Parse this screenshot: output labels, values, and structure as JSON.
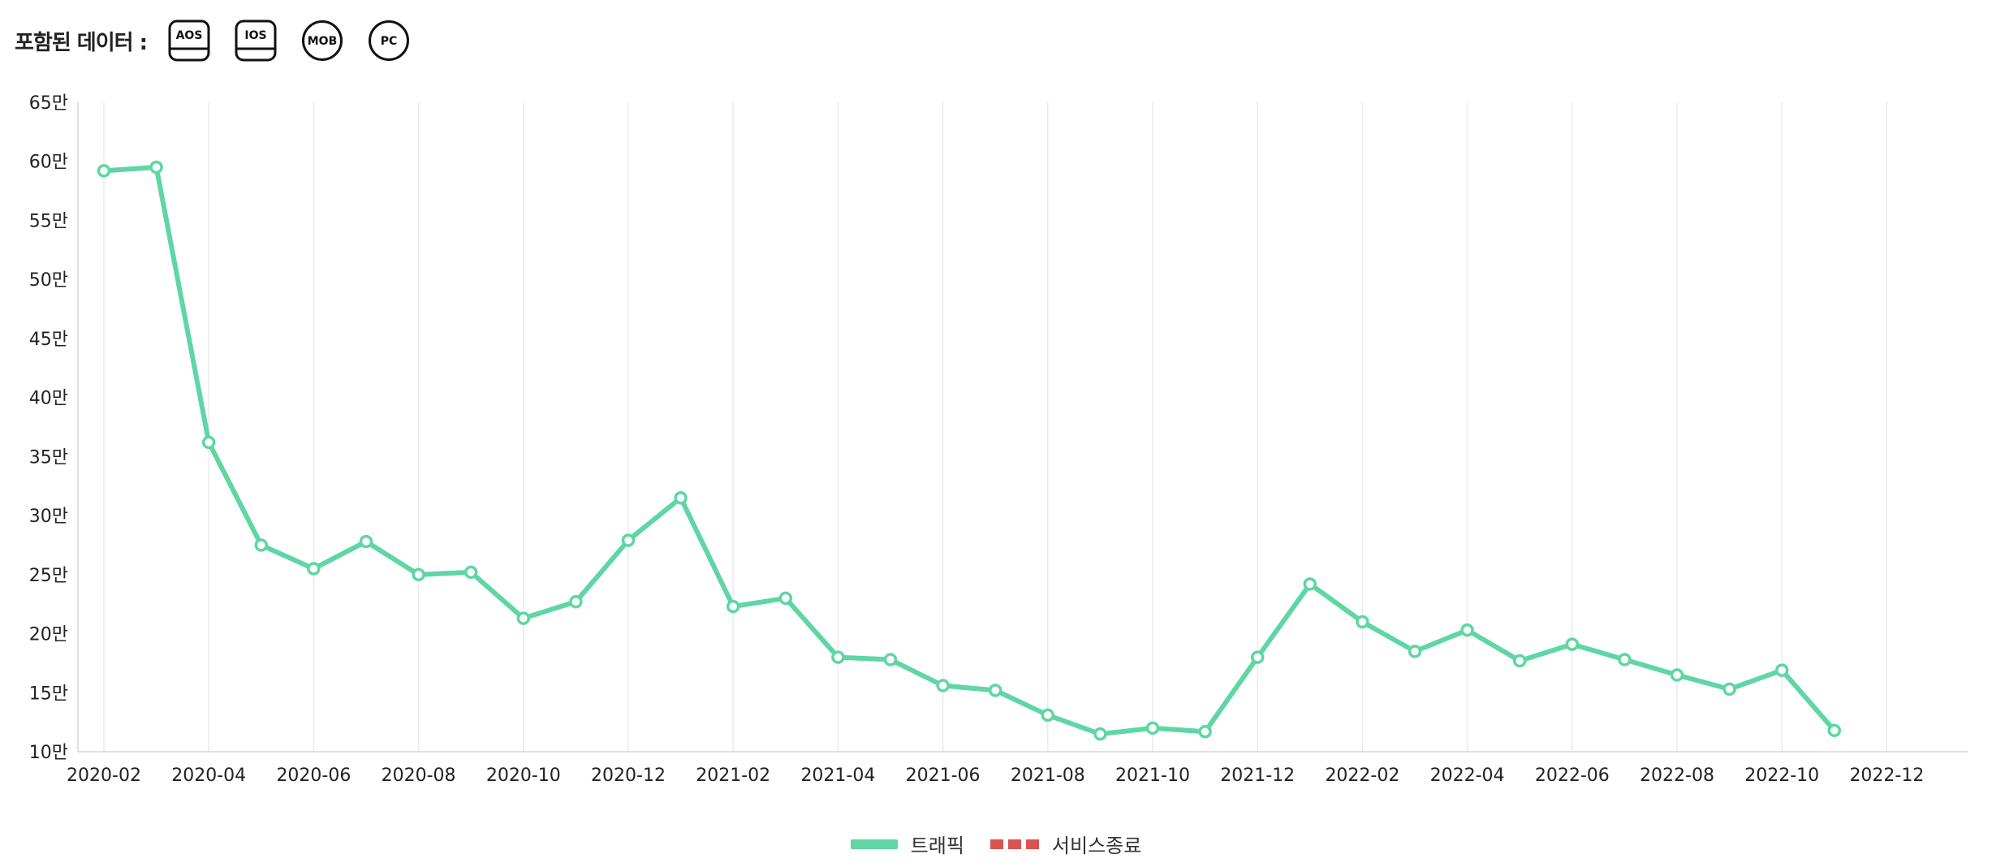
{
  "header": {
    "label": "포함된 데이터 :",
    "platforms": [
      {
        "label": "AOS",
        "icon": "aos-icon",
        "shape": "phone"
      },
      {
        "label": "IOS",
        "icon": "ios-icon",
        "shape": "phone"
      },
      {
        "label": "MOB",
        "icon": "mob-icon",
        "shape": "circle"
      },
      {
        "label": "PC",
        "icon": "pc-icon",
        "shape": "circle"
      }
    ]
  },
  "colors": {
    "traffic": "#5fd6a4",
    "service_end": "#d9534f",
    "grid": "#ebebeb",
    "axis": "#d5d5d5",
    "text": "#222222"
  },
  "chart_data": {
    "type": "line",
    "x_ticks": [
      "2020-02",
      "2020-04",
      "2020-06",
      "2020-08",
      "2020-10",
      "2020-12",
      "2021-02",
      "2021-04",
      "2021-06",
      "2021-08",
      "2021-10",
      "2021-12",
      "2022-02",
      "2022-04",
      "2022-06",
      "2022-08",
      "2022-10",
      "2022-12"
    ],
    "y_ticks": [
      "10만",
      "15만",
      "20만",
      "25만",
      "30만",
      "35만",
      "40만",
      "45만",
      "50만",
      "55만",
      "60만",
      "65만"
    ],
    "ylim": [
      100000,
      650000
    ],
    "x_range": [
      "2020-02",
      "2023-01"
    ],
    "grid": "vertical",
    "legend_position": "bottom-center",
    "series": [
      {
        "name": "트래픽",
        "style": "solid",
        "x": [
          "2020-02",
          "2020-03",
          "2020-04",
          "2020-05",
          "2020-06",
          "2020-07",
          "2020-08",
          "2020-09",
          "2020-10",
          "2020-11",
          "2020-12",
          "2021-01",
          "2021-02",
          "2021-03",
          "2021-04",
          "2021-05",
          "2021-06",
          "2021-07",
          "2021-08",
          "2021-09",
          "2021-10",
          "2021-11",
          "2021-12",
          "2022-01",
          "2022-02",
          "2022-03",
          "2022-04",
          "2022-05",
          "2022-06",
          "2022-07",
          "2022-08",
          "2022-09",
          "2022-10",
          "2022-11"
        ],
        "values": [
          592000,
          595000,
          362000,
          275000,
          255000,
          278000,
          250000,
          252000,
          213000,
          227000,
          279000,
          315000,
          223000,
          230000,
          180000,
          178000,
          156000,
          152000,
          131000,
          115000,
          120000,
          117000,
          180000,
          242000,
          210000,
          185000,
          203000,
          177000,
          191000,
          178000,
          165000,
          153000,
          169000,
          118000
        ]
      },
      {
        "name": "서비스종료",
        "style": "dashed",
        "x": [],
        "values": []
      }
    ]
  }
}
